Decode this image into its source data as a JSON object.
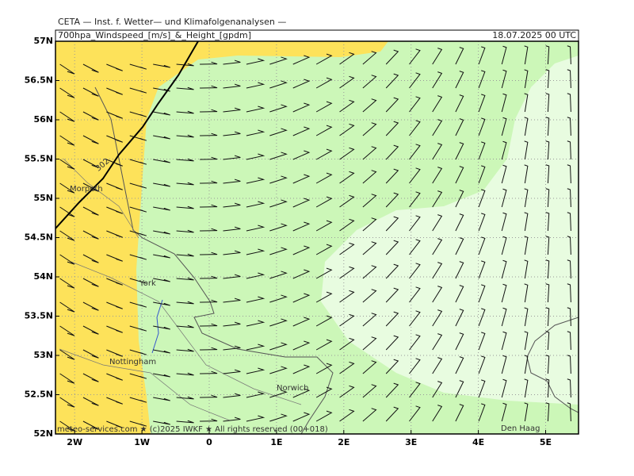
{
  "header": "CETA — Inst. f. Wetter— und Klimafolgenanalysen —",
  "title": "700hpa_Windspeed_[m/s]_&_Height_[gpdm]",
  "date": "18.07.2025 00 UTC",
  "lat_ticks": [
    {
      "value": 57,
      "label": "57N"
    },
    {
      "value": 56.5,
      "label": "56.5N"
    },
    {
      "value": 56,
      "label": "56N"
    },
    {
      "value": 55.5,
      "label": "55.5N"
    },
    {
      "value": 55,
      "label": "55N"
    },
    {
      "value": 54.5,
      "label": "54.5N"
    },
    {
      "value": 54,
      "label": "54N"
    },
    {
      "value": 53.5,
      "label": "53.5N"
    },
    {
      "value": 53,
      "label": "53N"
    },
    {
      "value": 52.5,
      "label": "52.5N"
    },
    {
      "value": 52,
      "label": "52N"
    }
  ],
  "lon_ticks": [
    {
      "value": -2,
      "label": "2W"
    },
    {
      "value": -1,
      "label": "1W"
    },
    {
      "value": 0,
      "label": "0"
    },
    {
      "value": 1,
      "label": "1E"
    },
    {
      "value": 2,
      "label": "2E"
    },
    {
      "value": 3,
      "label": "3E"
    },
    {
      "value": 4,
      "label": "4E"
    },
    {
      "value": 5,
      "label": "5E"
    }
  ],
  "places": [
    "Morpeth",
    "York",
    "Nottingham",
    "Norwich",
    "Den Haag"
  ],
  "contour_label": "302",
  "copyright": "meteo-services.com ★ (c)2025 IWKF ★ All rights reserved (00+018)"
}
